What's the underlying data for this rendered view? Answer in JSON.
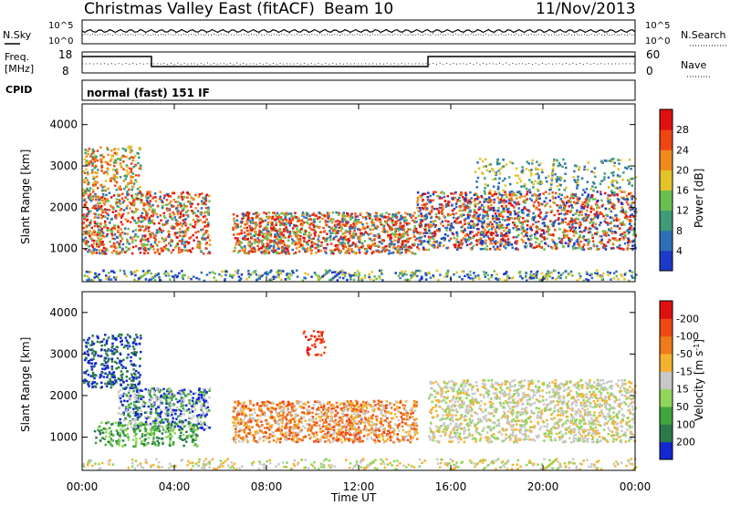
{
  "header": {
    "title": "Christmas Valley East (fitACF)",
    "beam": "Beam 10",
    "date": "11/Nov/2013"
  },
  "nsky_panel": {
    "left_label": "N.Sky",
    "left_ticks": [
      "10^5",
      "10^0"
    ],
    "right_ticks": [
      "10^5",
      "10^0"
    ],
    "right_label": "N.Search"
  },
  "freq_panel": {
    "left_label_1": "Freq.",
    "left_label_2": "[MHz]",
    "left_ticks": [
      "18",
      "8"
    ],
    "right_ticks": [
      "60",
      "0"
    ],
    "right_label": "Nave"
  },
  "cpid": {
    "label": "CPID",
    "text": "normal (fast) 151 IF"
  },
  "chart_data": [
    {
      "type": "heatmap",
      "name": "power",
      "ylabel": "Slant Range [km]",
      "yticks": [
        "1000",
        "2000",
        "3000",
        "4000"
      ],
      "ylim": [
        200,
        4500
      ],
      "colorbar_label": "Power [dB]",
      "colorbar_ticks": [
        "4",
        "8",
        "12",
        "16",
        "20",
        "24",
        "28"
      ],
      "colors": [
        "#1c39c8",
        "#2d6fb7",
        "#3d9b78",
        "#6bbf52",
        "#e3c22b",
        "#f08a1e",
        "#f04612",
        "#e01010"
      ]
    },
    {
      "type": "heatmap",
      "name": "velocity",
      "ylabel": "Slant Range [km]",
      "yticks": [
        "1000",
        "2000",
        "3000",
        "4000"
      ],
      "ylim": [
        200,
        4500
      ],
      "colorbar_label": "Velocity [m s^-1]",
      "colorbar_ticks": [
        "200",
        "100",
        "50",
        "15",
        "-15",
        "-50",
        "-100",
        "-200"
      ],
      "colors": [
        "#1328d0",
        "#2a7a4a",
        "#3fa63c",
        "#8fd65a",
        "#c8c8c8",
        "#f5b230",
        "#f07a1c",
        "#f04a14",
        "#e01010"
      ]
    }
  ],
  "xaxis": {
    "label": "Time UT",
    "ticks": [
      "00:00",
      "04:00",
      "08:00",
      "12:00",
      "16:00",
      "20:00",
      "00:00"
    ]
  }
}
